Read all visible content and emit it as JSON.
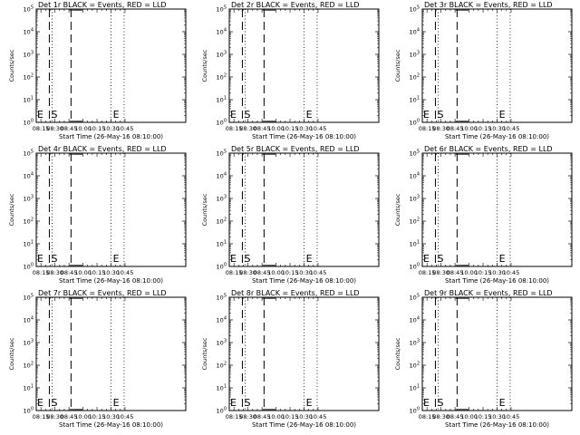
{
  "figure": {
    "charts": [
      {
        "title": "Det 1r BLACK = Events, RED = LLD",
        "s_label": "S",
        "e_label": "E"
      },
      {
        "title": "Det 2r BLACK = Events, RED = LLD",
        "s_label": "S",
        "e_label": "E"
      },
      {
        "title": "Det 3r BLACK = Events, RED = LLD",
        "s_label": "S",
        "e_label": "E"
      },
      {
        "title": "Det 4r BLACK = Events, RED = LLD",
        "s_label": "S",
        "e_label": "E"
      },
      {
        "title": "Det 5r BLACK = Events, RED = LLD",
        "s_label": "S",
        "e_label": "E"
      },
      {
        "title": "Det 6r BLACK = Events, RED = LLD",
        "s_label": "S",
        "e_label": "E"
      },
      {
        "title": "Det 7r BLACK = Events, RED = LLD",
        "s_label": "S",
        "e_label": "E"
      },
      {
        "title": "Det 8r BLACK = Events, RED = LLD",
        "s_label": "S",
        "e_label": "E"
      },
      {
        "title": "Det 9r BLACK = Events, RED = LLD",
        "s_label": "S",
        "e_label": "E"
      }
    ]
  },
  "chart_data": {
    "type": "line",
    "panel_count": 9,
    "grid": false,
    "xlabel": "Start Time (26-May-16 08:10:00)",
    "ylabel": "Counts/sec",
    "x_axis": {
      "min": "08:10",
      "max": "10:50",
      "tick_labels": [
        "08:15",
        "08:30",
        "08:45",
        "10:00",
        "10:15",
        "10:30",
        "10:45"
      ]
    },
    "y_axis": {
      "scale": "log",
      "min": 1,
      "max": 100000,
      "tick_base": "10",
      "tick_exponents": [
        "0",
        "1",
        "2",
        "3",
        "4",
        "5"
      ]
    },
    "vertical_markers": {
      "dashed": [
        "08:24",
        "08:56"
      ],
      "dotted": [
        "08:27",
        "10:30",
        "10:44"
      ]
    },
    "annotations": [
      {
        "text": "S",
        "x": "08:25"
      },
      {
        "text": "E",
        "x": "10:33"
      }
    ],
    "series": []
  }
}
